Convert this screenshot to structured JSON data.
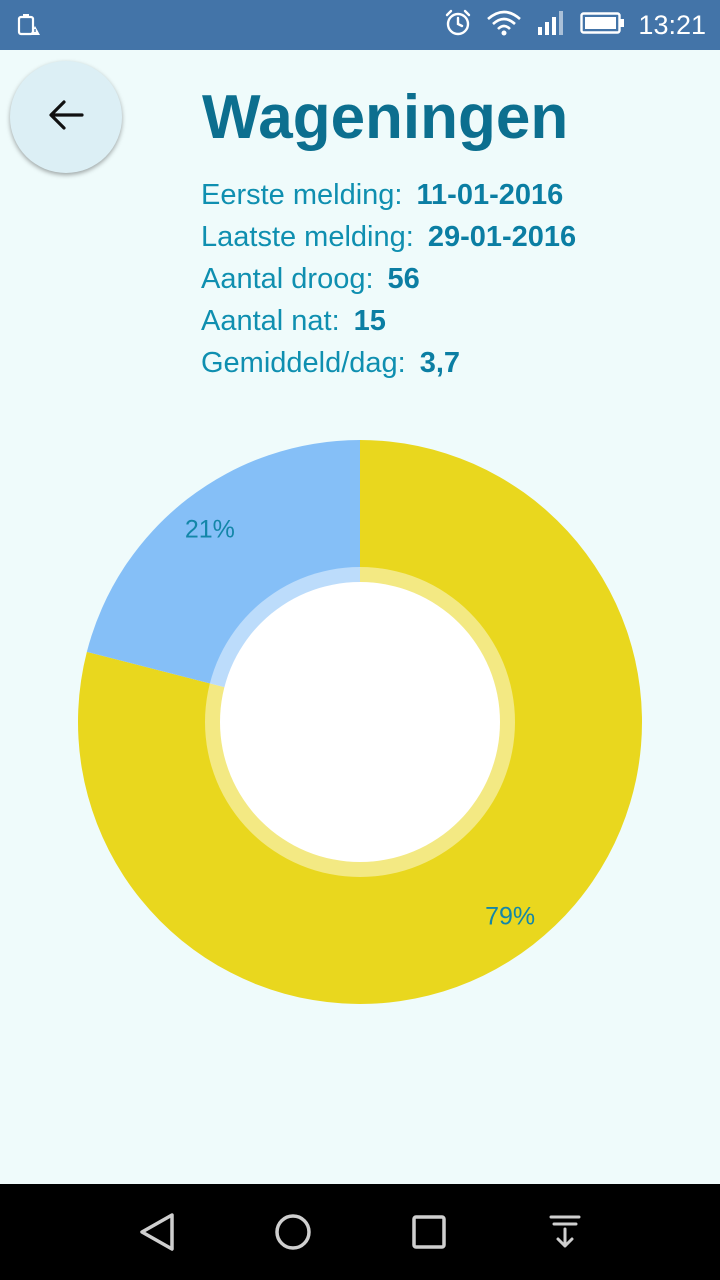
{
  "status_bar": {
    "time": "13:21",
    "icons": [
      "battery-alert-icon",
      "alarm-icon",
      "wifi-icon",
      "signal-icon",
      "battery-icon"
    ]
  },
  "header": {
    "back_icon": "arrow-left-icon",
    "title": "Wageningen"
  },
  "info": [
    {
      "label": "Eerste melding:",
      "value": "11-01-2016"
    },
    {
      "label": "Laatste melding:",
      "value": "29-01-2016"
    },
    {
      "label": "Aantal droog:",
      "value": "56"
    },
    {
      "label": "Aantal nat:",
      "value": "15"
    },
    {
      "label": "Gemiddeld/dag:",
      "value": "3,7"
    }
  ],
  "chart_data": {
    "type": "pie",
    "labels": [
      "21%",
      "79%"
    ],
    "values": [
      21,
      79
    ],
    "colors": [
      "#85bff7",
      "#e9d71e"
    ],
    "title": "",
    "legend": "none"
  },
  "nav_bar": {
    "icons": [
      "back-triangle-icon",
      "home-circle-icon",
      "recents-square-icon",
      "notifications-down-icon"
    ]
  }
}
